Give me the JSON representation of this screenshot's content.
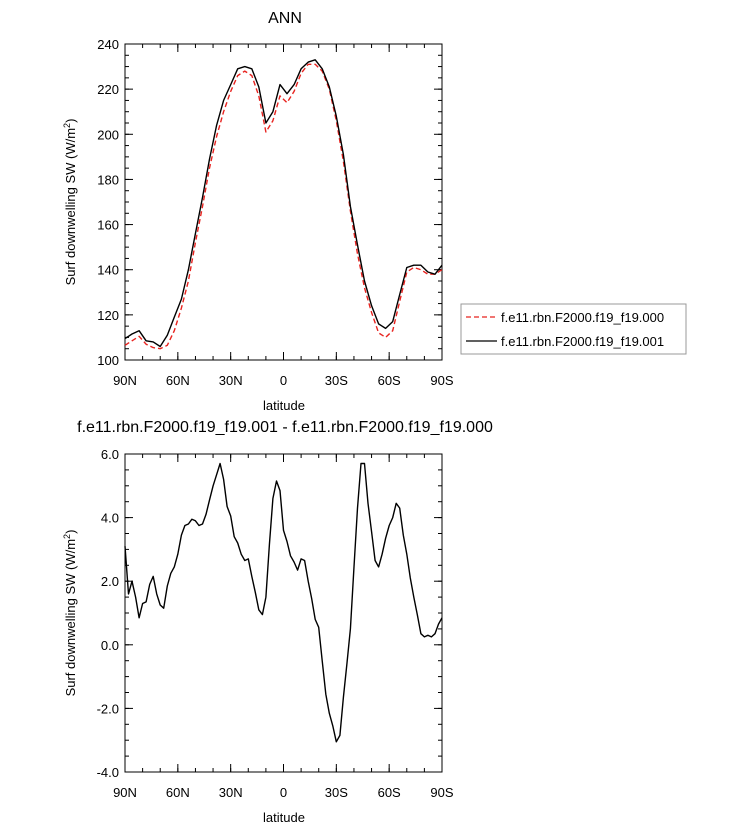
{
  "chart_data": [
    {
      "type": "line",
      "title": "ANN",
      "xlabel": "latitude",
      "ylabel": "Surf downwelling SW (W/m",
      "ylabel_sup": "2",
      "ylabel_end": ")",
      "xlim": [
        90,
        -90
      ],
      "ylim": [
        100,
        240
      ],
      "xticks": [
        90,
        60,
        30,
        0,
        -30,
        -60,
        -90
      ],
      "xtick_labels": [
        "90N",
        "60N",
        "30N",
        "0",
        "30S",
        "60S",
        "90S"
      ],
      "yticks": [
        100,
        120,
        140,
        160,
        180,
        200,
        220,
        240
      ],
      "ytick_labels": [
        "100",
        "120",
        "140",
        "160",
        "180",
        "200",
        "220",
        "240"
      ],
      "grid": false,
      "legend_position": "right",
      "series": [
        {
          "name": "f.e11.rbn.F2000.f19_f19.000",
          "color": "#e8231f",
          "style": "dashed",
          "x": [
            90,
            86,
            82,
            78,
            74,
            70,
            66,
            62,
            58,
            54,
            50,
            46,
            42,
            38,
            34,
            30,
            26,
            22,
            18,
            14,
            10,
            6,
            2,
            -2,
            -6,
            -10,
            -14,
            -18,
            -22,
            -26,
            -30,
            -34,
            -38,
            -42,
            -46,
            -50,
            -54,
            -58,
            -62,
            -66,
            -70,
            -74,
            -78,
            -82,
            -86,
            -90
          ],
          "values": [
            106.5,
            108.5,
            110.5,
            107,
            105.5,
            105,
            106.5,
            113,
            123,
            135,
            152,
            168,
            185,
            199,
            210,
            219,
            226,
            228,
            226,
            217,
            201,
            206,
            217,
            214,
            219,
            227,
            231,
            231,
            228,
            220,
            206,
            188,
            166,
            147,
            132,
            121,
            112,
            110,
            113,
            126,
            139,
            141,
            140,
            138,
            138,
            140
          ]
        },
        {
          "name": "f.e11.rbn.F2000.f19_f19.001",
          "color": "#000000",
          "style": "solid",
          "x": [
            90,
            86,
            82,
            78,
            74,
            70,
            66,
            62,
            58,
            54,
            50,
            46,
            42,
            38,
            34,
            30,
            26,
            22,
            18,
            14,
            10,
            6,
            2,
            -2,
            -6,
            -10,
            -14,
            -18,
            -22,
            -26,
            -30,
            -34,
            -38,
            -42,
            -46,
            -50,
            -54,
            -58,
            -62,
            -66,
            -70,
            -74,
            -78,
            -82,
            -86,
            -90
          ],
          "values": [
            109.5,
            111.5,
            113,
            108.5,
            108,
            106,
            111,
            119,
            127,
            140,
            156,
            172,
            189,
            204,
            215,
            222,
            229,
            230,
            229,
            221,
            205,
            210,
            222,
            218,
            222,
            229,
            232,
            233,
            229,
            221,
            208,
            191,
            168,
            151,
            135,
            124,
            116,
            114,
            117,
            129,
            141,
            142,
            142,
            139,
            138,
            142
          ]
        }
      ]
    },
    {
      "type": "line",
      "title": "f.e11.rbn.F2000.f19_f19.001 - f.e11.rbn.F2000.f19_f19.000",
      "xlabel": "latitude",
      "ylabel": "Surf downwelling SW (W/m",
      "ylabel_sup": "2",
      "ylabel_end": ")",
      "xlim": [
        90,
        -90
      ],
      "ylim": [
        -4,
        6
      ],
      "xticks": [
        90,
        60,
        30,
        0,
        -30,
        -60,
        -90
      ],
      "xtick_labels": [
        "90N",
        "60N",
        "30N",
        "0",
        "30S",
        "60S",
        "90S"
      ],
      "yticks": [
        -4,
        -2,
        0,
        2,
        4,
        6
      ],
      "ytick_labels": [
        "-4.0",
        "-2.0",
        "0.0",
        "2.0",
        "4.0",
        "6.0"
      ],
      "grid": false,
      "series": [
        {
          "color": "#000000",
          "style": "solid",
          "x": [
            90,
            88,
            86,
            84,
            82,
            80,
            78,
            76,
            74,
            72,
            70,
            68,
            66,
            64,
            62,
            60,
            58,
            56,
            54,
            52,
            50,
            48,
            46,
            44,
            42,
            40,
            38,
            36,
            34,
            32,
            30,
            28,
            26,
            24,
            22,
            20,
            18,
            16,
            14,
            12,
            10,
            8,
            6,
            4,
            2,
            0,
            -2,
            -4,
            -6,
            -8,
            -10,
            -12,
            -14,
            -16,
            -18,
            -20,
            -22,
            -24,
            -26,
            -28,
            -30,
            -32,
            -34,
            -36,
            -38,
            -40,
            -42,
            -44,
            -46,
            -48,
            -50,
            -52,
            -54,
            -56,
            -58,
            -60,
            -62,
            -64,
            -66,
            -68,
            -70,
            -72,
            -74,
            -76,
            -78,
            -80,
            -82,
            -84,
            -86,
            -88,
            -90
          ],
          "values": [
            3.1,
            1.6,
            2.0,
            1.5,
            0.85,
            1.3,
            1.35,
            1.9,
            2.15,
            1.6,
            1.25,
            1.15,
            1.85,
            2.25,
            2.45,
            2.85,
            3.45,
            3.75,
            3.8,
            3.95,
            3.9,
            3.75,
            3.8,
            4.1,
            4.55,
            5.0,
            5.35,
            5.7,
            5.2,
            4.35,
            4.05,
            3.4,
            3.2,
            2.85,
            2.65,
            2.7,
            2.15,
            1.65,
            1.1,
            0.95,
            1.5,
            3.15,
            4.6,
            5.15,
            4.85,
            3.6,
            3.25,
            2.8,
            2.6,
            2.35,
            2.7,
            2.65,
            2.0,
            1.45,
            0.8,
            0.55,
            -0.5,
            -1.55,
            -2.15,
            -2.55,
            -3.05,
            -2.85,
            -1.65,
            -0.6,
            0.5,
            2.4,
            4.3,
            5.7,
            5.7,
            4.45,
            3.55,
            2.65,
            2.45,
            2.85,
            3.35,
            3.75,
            4.0,
            4.45,
            4.3,
            3.45,
            2.85,
            2.1,
            1.5,
            0.95,
            0.35,
            0.25,
            0.3,
            0.25,
            0.35,
            0.65,
            0.85
          ]
        }
      ]
    }
  ]
}
